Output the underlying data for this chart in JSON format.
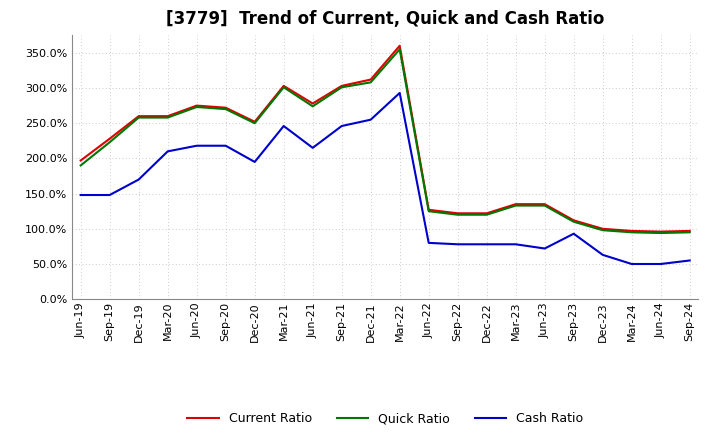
{
  "title": "[3779]  Trend of Current, Quick and Cash Ratio",
  "x_labels": [
    "Jun-19",
    "Sep-19",
    "Dec-19",
    "Mar-20",
    "Jun-20",
    "Sep-20",
    "Dec-20",
    "Mar-21",
    "Jun-21",
    "Sep-21",
    "Dec-21",
    "Mar-22",
    "Jun-22",
    "Sep-22",
    "Dec-22",
    "Mar-23",
    "Jun-23",
    "Sep-23",
    "Dec-23",
    "Mar-24",
    "Jun-24",
    "Sep-24"
  ],
  "current_ratio": [
    1.97,
    2.28,
    2.6,
    2.6,
    2.75,
    2.72,
    2.52,
    3.03,
    2.78,
    3.03,
    3.12,
    3.6,
    1.27,
    1.22,
    1.22,
    1.35,
    1.35,
    1.12,
    1.0,
    0.97,
    0.96,
    0.97
  ],
  "quick_ratio": [
    1.9,
    2.23,
    2.58,
    2.58,
    2.73,
    2.7,
    2.5,
    3.01,
    2.74,
    3.01,
    3.08,
    3.55,
    1.25,
    1.2,
    1.2,
    1.33,
    1.33,
    1.1,
    0.98,
    0.95,
    0.94,
    0.95
  ],
  "cash_ratio": [
    1.48,
    1.48,
    1.7,
    2.1,
    2.18,
    2.18,
    1.95,
    2.46,
    2.15,
    2.46,
    2.55,
    2.93,
    0.8,
    0.78,
    0.78,
    0.78,
    0.72,
    0.93,
    0.63,
    0.5,
    0.5,
    0.55
  ],
  "current_color": "#dd0000",
  "quick_color": "#007700",
  "cash_color": "#0000cc",
  "ylim": [
    0.0,
    3.75
  ],
  "yticks": [
    0.0,
    0.5,
    1.0,
    1.5,
    2.0,
    2.5,
    3.0,
    3.5
  ],
  "background_color": "#ffffff",
  "grid_color": "#bbbbbb",
  "title_fontsize": 12,
  "legend_fontsize": 9,
  "axis_fontsize": 8,
  "linewidth": 1.5
}
